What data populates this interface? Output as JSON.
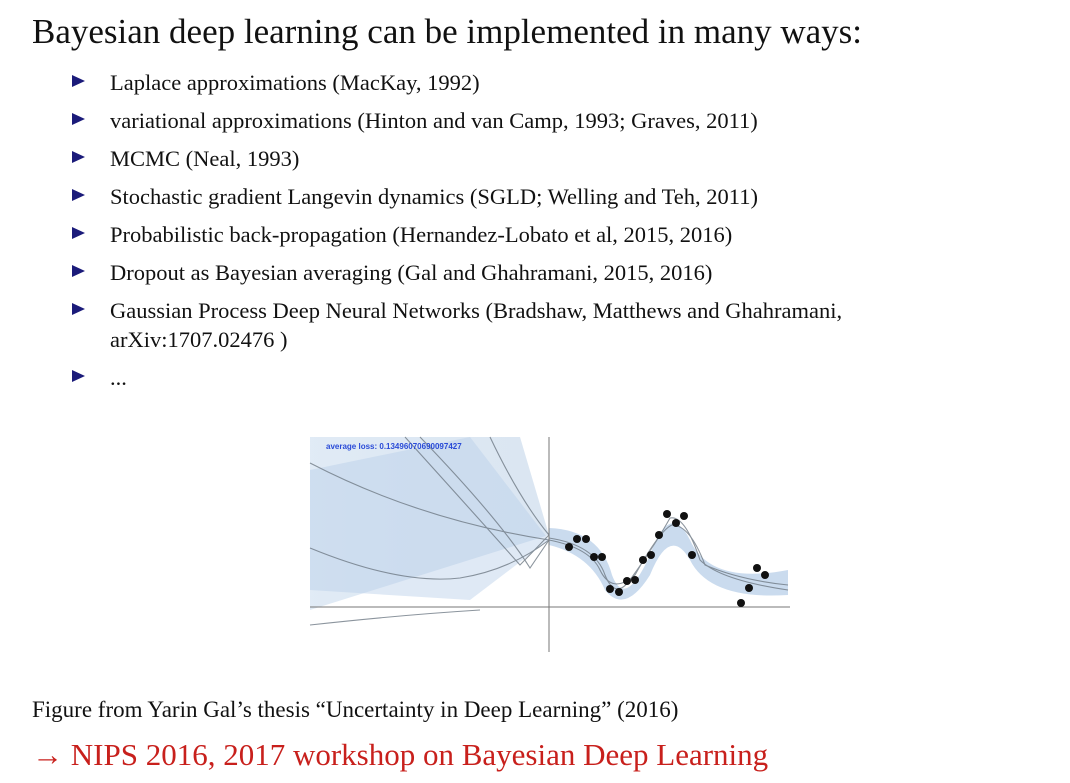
{
  "slide": {
    "title": "Bayesian deep learning can be implemented in many ways:",
    "bullets": [
      "Laplace approximations (MacKay, 1992)",
      "variational approximations (Hinton and van Camp, 1993; Graves, 2011)",
      "MCMC (Neal, 1993)",
      "Stochastic gradient Langevin dynamics (SGLD; Welling and Teh, 2011)",
      "Probabilistic back-propagation (Hernandez-Lobato et al, 2015, 2016)",
      "Dropout as Bayesian averaging (Gal and Ghahramani, 2015, 2016)",
      "Gaussian Process Deep Neural Networks (Bradshaw, Matthews and Ghahramani,",
      "..."
    ],
    "bullet_continuation": "arXiv:1707.02476 )",
    "figure": {
      "loss_label": "average loss: 0.13496070690097427",
      "loss_color": "#2a4bd7"
    },
    "caption": "Figure from Yarin Gal’s thesis “Uncertainty in Deep Learning” (2016)",
    "footer": "→ NIPS 2016, 2017 workshop on Bayesian Deep Learning",
    "footer_color": "#c8201c",
    "bullet_color": "#1b1b7a"
  }
}
